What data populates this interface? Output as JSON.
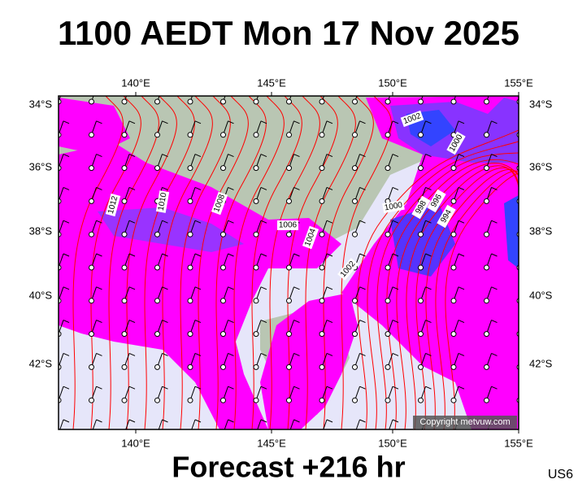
{
  "title": "1100 AEDT Mon 17 Nov 2025",
  "map": {
    "lon_labels": [
      "140°E",
      "145°E",
      "150°E",
      "155°E"
    ],
    "lat_labels": [
      "34°S",
      "36°S",
      "38°S",
      "40°S",
      "42°S"
    ],
    "isobar_labels": [
      "1002",
      "1000",
      "1012",
      "1010",
      "1008",
      "1006",
      "1004",
      "1000",
      "998",
      "996",
      "994",
      "1002"
    ],
    "copyright": "Copyright metvuw.com"
  },
  "footer": {
    "forecast": "Forecast +216 hr",
    "code": "US6"
  }
}
